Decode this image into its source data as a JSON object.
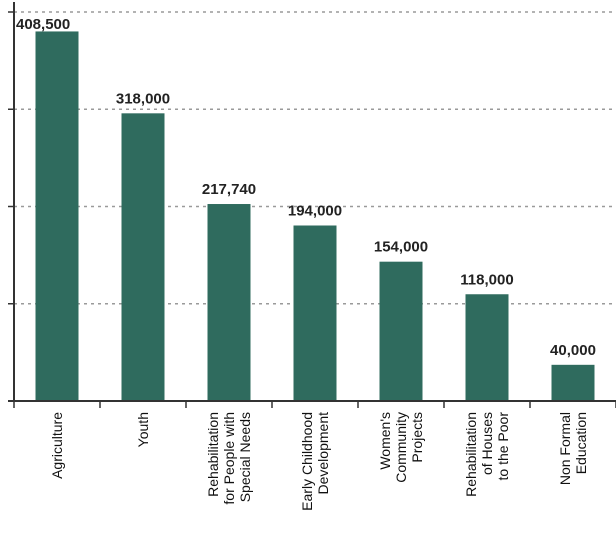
{
  "chart_data": {
    "type": "bar",
    "categories": [
      [
        "Agriculture"
      ],
      [
        "Youth"
      ],
      [
        "Rehabilitation",
        "for People with",
        "Special Needs"
      ],
      [
        "Early Childhood",
        "Development"
      ],
      [
        "Women's",
        "Community",
        "Projects"
      ],
      [
        "Rehabilitation",
        "of Houses",
        "to the Poor"
      ],
      [
        "Non Formal",
        "Education"
      ]
    ],
    "values": [
      408500,
      318000,
      217740,
      194000,
      154000,
      118000,
      40000
    ],
    "value_labels": [
      "408,500",
      "318,000",
      "217,740",
      "194,000",
      "154,000",
      "118,000",
      "40,000"
    ],
    "ylim": [
      0,
      430000
    ],
    "gridlines": [
      107500,
      215000,
      322500,
      430000
    ],
    "grid": true,
    "colors": {
      "bar": "#2f6b5e",
      "grid": "#9a9a9a",
      "axis": "#333333"
    }
  }
}
